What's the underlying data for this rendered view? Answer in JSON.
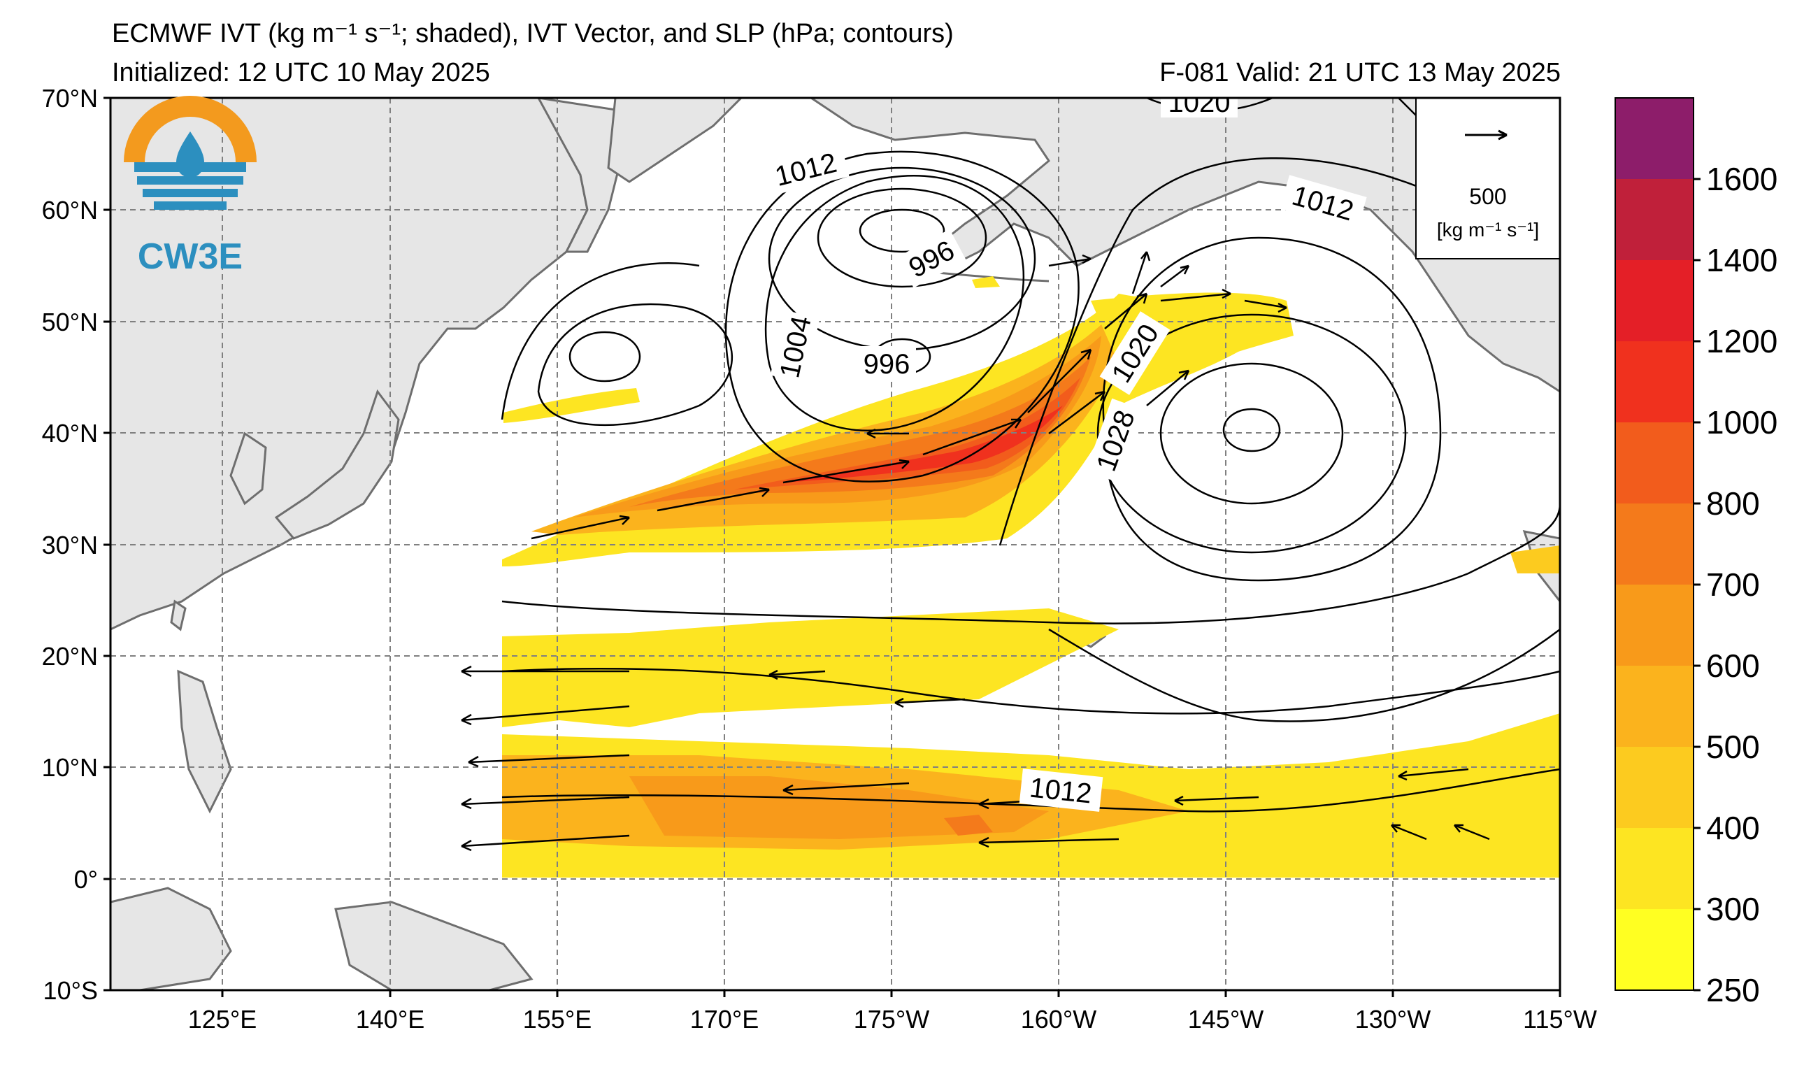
{
  "header": {
    "title": "ECMWF IVT (kg m⁻¹ s⁻¹; shaded), IVT Vector, and SLP (hPa; contours)",
    "initialized": "Initialized: 12 UTC 10 May 2025",
    "valid": "F-081  Valid: 21 UTC 13 May 2025"
  },
  "logo": {
    "text": "CW3E",
    "colors": {
      "ring": "#f39a1e",
      "water": "#2c8fbf"
    }
  },
  "map": {
    "lat_labels": [
      "70°N",
      "60°N",
      "50°N",
      "40°N",
      "30°N",
      "20°N",
      "10°N",
      "0°",
      "10°S"
    ],
    "lon_labels": [
      "125°E",
      "140°E",
      "155°E",
      "170°E",
      "175°W",
      "160°W",
      "145°W",
      "130°W",
      "115°W"
    ],
    "contour_labels": [
      "1012",
      "996",
      "996",
      "1004",
      "1020",
      "1012",
      "1020",
      "1028",
      "1012"
    ],
    "vector_key": {
      "value": "500",
      "units": "[kg m⁻¹ s⁻¹]"
    },
    "land_color": "#e6e6e6",
    "border_color": "#6e6e6e"
  },
  "colorbar": {
    "labels": [
      "250",
      "300",
      "400",
      "500",
      "600",
      "700",
      "800",
      "1000",
      "1200",
      "1400",
      "1600"
    ],
    "colors": [
      "#ffff22",
      "#fde522",
      "#fccb1f",
      "#fbb31d",
      "#f89a1a",
      "#f47a1b",
      "#f25c1c",
      "#f0311e",
      "#e41f27",
      "#c0203a",
      "#8d1d6a",
      "#6c1f95"
    ]
  }
}
